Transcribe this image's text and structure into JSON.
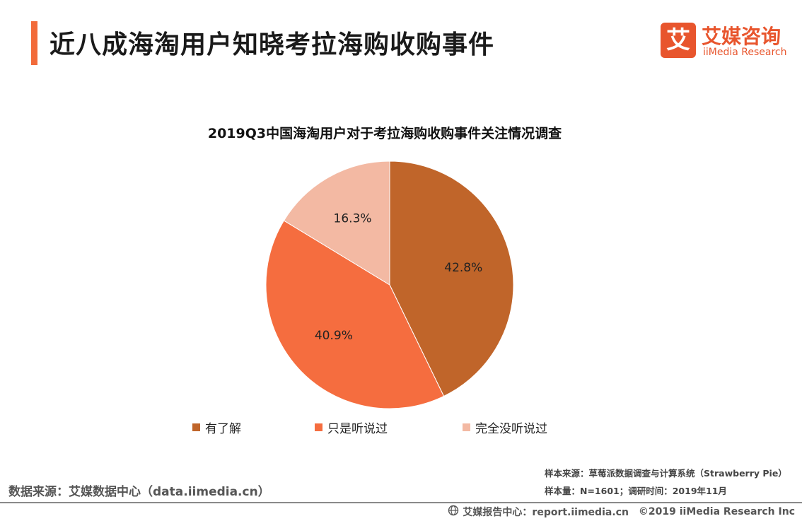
{
  "header": {
    "title": "近八成海淘用户知晓考拉海购收购事件",
    "accent_color": "#f26b3a"
  },
  "logo": {
    "mark": "艾",
    "name_cn": "艾媒咨询",
    "name_en": "iiMedia Research",
    "color": "#e8552d"
  },
  "chart_data": {
    "type": "pie",
    "title": "2019Q3中国海淘用户对于考拉海购收购事件关注情况调查",
    "categories": [
      "有了解",
      "只是听说过",
      "完全没听说过"
    ],
    "values": [
      42.8,
      40.9,
      16.3
    ],
    "labels": [
      "42.8%",
      "40.9%",
      "16.3%"
    ],
    "colors": [
      "#c0652a",
      "#f56d3f",
      "#f3b9a3"
    ],
    "unit": "%",
    "start_angle_deg": 0,
    "direction": "clockwise",
    "legend_position": "bottom"
  },
  "footer": {
    "source": "数据来源：艾媒数据中心（data.iimedia.cn）",
    "sample_source": "样本来源：草莓派数据调查与计算系统（Strawberry Pie）",
    "sample_size": "样本量：N=1601；调研时间：2019年11月",
    "report_center": "艾媒报告中心：report.iimedia.cn",
    "copyright": "©2019  iiMedia Research  Inc",
    "globe_icon": "globe-icon"
  }
}
